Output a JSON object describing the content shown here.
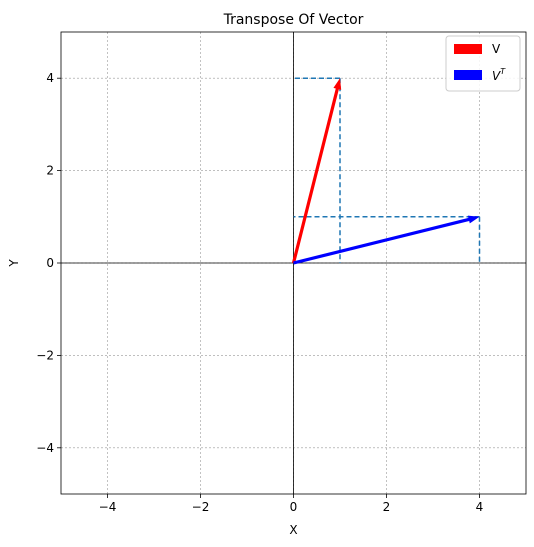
{
  "chart_data": {
    "type": "vector-plot",
    "title": "Transpose Of Vector",
    "xlabel": "X",
    "ylabel": "Y",
    "xlim": [
      -5,
      5
    ],
    "ylim": [
      -5,
      5
    ],
    "xticks": [
      -4,
      -2,
      0,
      2,
      4
    ],
    "yticks": [
      -4,
      -2,
      0,
      2,
      4
    ],
    "grid": true,
    "legend_position": "top-right",
    "series": [
      {
        "name": "V",
        "label_base": "V",
        "label_sup": "",
        "origin": [
          0,
          0
        ],
        "vector": [
          1,
          4
        ],
        "color": "#ff0000"
      },
      {
        "name": "V^T",
        "label_base": "V",
        "label_sup": "T",
        "origin": [
          0,
          0
        ],
        "vector": [
          4,
          1
        ],
        "color": "#0000ff"
      }
    ],
    "projection_color": "#1f77b4"
  }
}
